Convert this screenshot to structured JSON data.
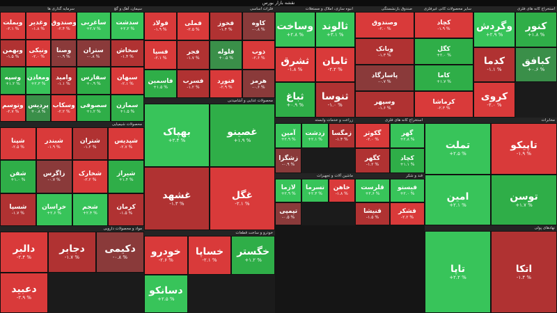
{
  "page_title": "نقشه بازار بورس",
  "colors": {
    "strong_neg": "#d93a3a",
    "neg": "#b03232",
    "weak_neg": "#8a3a3a",
    "neutral": "#4a4a4a",
    "weak_pos": "#3a8f49",
    "pos": "#2fae48",
    "strong_pos": "#38c45a"
  },
  "sectors": [
    {
      "name": "سرمایه گذاری ها",
      "tiles": [
        {
          "s": "وبملت",
          "p": "-۲.۱ %",
          "c": "strong_neg"
        },
        {
          "s": "وغدیر",
          "p": "-۱.۸ %",
          "c": "strong_neg"
        },
        {
          "s": "وصندوق",
          "p": "-۲.۴ %",
          "c": "strong_neg"
        },
        {
          "s": "وبهمن",
          "p": "-۱.۵ %",
          "c": "neg"
        },
        {
          "s": "ونیکی",
          "p": "-۲.۰ %",
          "c": "strong_neg"
        },
        {
          "s": "وصنا",
          "p": "-۰.۹ %",
          "c": "weak_neg"
        },
        {
          "s": "وسپه",
          "p": "+۱.۲ %",
          "c": "pos"
        },
        {
          "s": "ومعادن",
          "p": "+۲.۳ %",
          "c": "strong_pos"
        },
        {
          "s": "وامید",
          "p": "-۱.۱ %",
          "c": "neg"
        },
        {
          "s": "وتوسم",
          "p": "-۲.۷ %",
          "c": "strong_neg"
        },
        {
          "s": "پردیس",
          "p": "+۰.۸ %",
          "c": "weak_pos"
        },
        {
          "s": "وسکاب",
          "p": "-۲.۲ %",
          "c": "strong_neg"
        }
      ]
    },
    {
      "name": "فلزات اساسی",
      "tiles": [
        {
          "s": "فولاد",
          "p": "-۱.۹ %",
          "c": "strong_neg"
        },
        {
          "s": "فملی",
          "p": "-۲.۵ %",
          "c": "strong_neg"
        },
        {
          "s": "فخوز",
          "p": "-۱.۴ %",
          "c": "neg"
        },
        {
          "s": "کاوه",
          "p": "-۰.۸ %",
          "c": "weak_neg"
        },
        {
          "s": "فسپا",
          "p": "-۲.۱ %",
          "c": "strong_neg"
        },
        {
          "s": "فجر",
          "p": "-۱.۷ %",
          "c": "neg"
        },
        {
          "s": "فلوله",
          "p": "+۰.۵ %",
          "c": "weak_pos"
        },
        {
          "s": "ذوب",
          "p": "-۲.۶ %",
          "c": "strong_neg"
        },
        {
          "s": "فاسمین",
          "p": "+۱.۵ %",
          "c": "pos"
        },
        {
          "s": "فسرب",
          "p": "-۱.۲ %",
          "c": "neg"
        },
        {
          "s": "فنورد",
          "p": "-۲.۹ %",
          "c": "strong_neg"
        },
        {
          "s": "هرمز",
          "p": "-۰.۶ %",
          "c": "weak_neg"
        }
      ]
    },
    {
      "name": "انبوه سازی، املاک و مستغلات",
      "tiles": [
        {
          "s": "وساخت",
          "p": "+۲.۸ %",
          "c": "strong_pos"
        },
        {
          "s": "ثالوند",
          "p": "+۳.۱ %",
          "c": "strong_pos"
        },
        {
          "s": "ثشرق",
          "p": "-۱.۸ %",
          "c": "strong_neg"
        },
        {
          "s": "ثامان",
          "p": "-۲.۲ %",
          "c": "strong_neg"
        },
        {
          "s": "ثباغ",
          "p": "+۰.۹ %",
          "c": "pos"
        },
        {
          "s": "ثنوسا",
          "p": "-۱.۰ %",
          "c": "neg"
        }
      ]
    },
    {
      "name": "صندوق بازنشستگی",
      "tiles": [
        {
          "s": "وصندوق",
          "p": "-۲.۰ %",
          "c": "strong_neg"
        },
        {
          "s": "وبانک",
          "p": "-۱.۳ %",
          "c": "neg"
        },
        {
          "s": "پاسارگاد",
          "p": "-۰.۷ %",
          "c": "weak_neg"
        },
        {
          "s": "وسپهر",
          "p": "-۱.۶ %",
          "c": "neg"
        }
      ]
    },
    {
      "name": "سایر محصولات کانی غیرفلزی",
      "tiles": [
        {
          "s": "کچاد",
          "p": "-۱.۹ %",
          "c": "strong_neg"
        },
        {
          "s": "کگل",
          "p": "+۲.۰ %",
          "c": "pos"
        },
        {
          "s": "کاما",
          "p": "+۱.۷ %",
          "c": "pos"
        },
        {
          "s": "کرماشا",
          "p": "-۲.۳ %",
          "c": "strong_neg"
        }
      ]
    },
    {
      "name": "استخراج کانه های فلزی",
      "tiles": [
        {
          "s": "وگردش",
          "p": "+۲.۹ %",
          "c": "strong_pos"
        },
        {
          "s": "کنور",
          "p": "+۱.۸ %",
          "c": "pos"
        },
        {
          "s": "کدما",
          "p": "-۱.۱ %",
          "c": "neg"
        },
        {
          "s": "کبافق",
          "p": "+۰.۶ %",
          "c": "weak_pos"
        },
        {
          "s": "کروی",
          "p": "-۲.۰ %",
          "c": "strong_neg"
        }
      ]
    },
    {
      "name": "سیمان، آهک و گچ",
      "tiles": [
        {
          "s": "ساغربی",
          "p": "+۲.۷ %",
          "c": "strong_pos"
        },
        {
          "s": "سدشت",
          "p": "+۲.۲ %",
          "c": "strong_pos"
        },
        {
          "s": "ستران",
          "p": "-۰.۸ %",
          "c": "weak_neg"
        },
        {
          "s": "سخاش",
          "p": "-۱.۴ %",
          "c": "neg"
        },
        {
          "s": "سفارس",
          "p": "+۰.۹ %",
          "c": "pos"
        },
        {
          "s": "سبهان",
          "p": "-۲.۱ %",
          "c": "strong_neg"
        },
        {
          "s": "سصوفی",
          "p": "+۱.۲ %",
          "c": "pos"
        },
        {
          "s": "سمازن",
          "p": "+۱.۵ %",
          "c": "pos"
        }
      ]
    },
    {
      "name": "محصولات شیمیایی",
      "tiles": [
        {
          "s": "شپنا",
          "p": "-۲.۵ %",
          "c": "strong_neg"
        },
        {
          "s": "شبندر",
          "p": "-۱.۹ %",
          "c": "strong_neg"
        },
        {
          "s": "شتران",
          "p": "-۱.۲ %",
          "c": "neg"
        },
        {
          "s": "شپدیس",
          "p": "-۲.۷ %",
          "c": "strong_neg"
        },
        {
          "s": "شفن",
          "p": "+۱.۰ %",
          "c": "pos"
        },
        {
          "s": "زاگرس",
          "p": "-۰.۷ %",
          "c": "weak_neg"
        },
        {
          "s": "شخارک",
          "p": "-۲.۲ %",
          "c": "strong_neg"
        },
        {
          "s": "شیراز",
          "p": "+۱.۴ %",
          "c": "pos"
        },
        {
          "s": "شسپا",
          "p": "-۱.۷ %",
          "c": "neg"
        },
        {
          "s": "خراسان",
          "p": "+۲.۶ %",
          "c": "strong_pos"
        },
        {
          "s": "شجم",
          "p": "+۲.۴ %",
          "c": "strong_pos"
        },
        {
          "s": "کرمان",
          "p": "-۱.۵ %",
          "c": "neg"
        }
      ]
    },
    {
      "name": "زراعت و خدمات وابسته",
      "tiles": [
        {
          "s": "آمین",
          "p": "+۲.۹ %",
          "c": "strong_pos"
        },
        {
          "s": "زدشت",
          "p": "+۲.۱ %",
          "c": "strong_pos"
        },
        {
          "s": "زمگسا",
          "p": "-۱.۴ %",
          "c": "neg"
        },
        {
          "s": "زشگزا",
          "p": "-۰.۹ %",
          "c": "weak_neg"
        }
      ]
    },
    {
      "name": "استخراج کانه های فلزی",
      "tiles": [
        {
          "s": "گکوثر",
          "p": "-۲.۰ %",
          "c": "strong_neg"
        },
        {
          "s": "گهر",
          "p": "+۲.۸ %",
          "c": "strong_pos"
        },
        {
          "s": "کگهر",
          "p": "-۱.۲ %",
          "c": "neg"
        },
        {
          "s": "کچاد",
          "p": "+۱.۱ %",
          "c": "pos"
        }
      ]
    },
    {
      "name": "ماشین آلات و تجهیزات",
      "tiles": [
        {
          "s": "لازما",
          "p": "+۲.۹ %",
          "c": "strong_pos"
        },
        {
          "s": "تسرما",
          "p": "+۲.۳ %",
          "c": "strong_pos"
        },
        {
          "s": "خاهن",
          "p": "-۱.۸ %",
          "c": "strong_neg"
        },
        {
          "s": "تپمپی",
          "p": "-۰.۵ %",
          "c": "weak_neg"
        }
      ]
    },
    {
      "name": "قند و شکر",
      "tiles": [
        {
          "s": "قلرست",
          "p": "+۲.۶ %",
          "c": "strong_pos"
        },
        {
          "s": "فیستو",
          "p": "+۲.۰ %",
          "c": "strong_pos"
        },
        {
          "s": "قنیشا",
          "p": "-۱.۵ %",
          "c": "neg"
        },
        {
          "s": "قشکر",
          "p": "-۲.۲ %",
          "c": "strong_neg"
        }
      ]
    },
    {
      "name": "مخابرات",
      "tiles": [
        {
          "s": "تملت",
          "p": "+۲.۵ %",
          "c": "strong_pos"
        },
        {
          "s": "تاپیکو",
          "p": "-۱.۹ %",
          "c": "strong_neg"
        },
        {
          "s": "امین",
          "p": "+۲.۱ %",
          "c": "strong_pos"
        },
        {
          "s": "توسن",
          "p": "+۱.۷ %",
          "c": "pos"
        }
      ]
    },
    {
      "name": "محصولات غذایی و آشامیدنی",
      "tiles": [
        {
          "s": "بهپاک",
          "p": "+۲.۴ %",
          "c": "strong_pos"
        },
        {
          "s": "غصینو",
          "p": "+۱.۹ %",
          "c": "pos"
        },
        {
          "s": "غشهد",
          "p": "-۱.۳ %",
          "c": "neg"
        },
        {
          "s": "غگل",
          "p": "-۲.۱ %",
          "c": "strong_neg"
        }
      ]
    },
    {
      "name": "خودرو و ساخت قطعات",
      "tiles": [
        {
          "s": "خودرو",
          "p": "-۲.۶ %",
          "c": "strong_neg"
        },
        {
          "s": "خساپا",
          "p": "-۲.۱ %",
          "c": "strong_neg"
        },
        {
          "s": "خگستر",
          "p": "+۱.۲ %",
          "c": "pos"
        },
        {
          "s": "دسانکو",
          "p": "+۲.۵ %",
          "c": "strong_pos"
        }
      ]
    },
    {
      "name": "مواد و محصولات دارویی",
      "tiles": [
        {
          "s": "دالبر",
          "p": "-۲.۴ %",
          "c": "strong_neg"
        },
        {
          "s": "دجابر",
          "p": "-۱.۷ %",
          "c": "neg"
        },
        {
          "s": "دکیمی",
          "p": "-۰.۸ %",
          "c": "weak_neg"
        },
        {
          "s": "دعبید",
          "p": "-۲.۹ %",
          "c": "strong_neg"
        }
      ]
    },
    {
      "name": "نهادهای پولی",
      "tiles": [
        {
          "s": "تاپا",
          "p": "+۲.۲ %",
          "c": "strong_pos"
        },
        {
          "s": "اتکا",
          "p": "-۱.۴ %",
          "c": "neg"
        }
      ]
    }
  ]
}
